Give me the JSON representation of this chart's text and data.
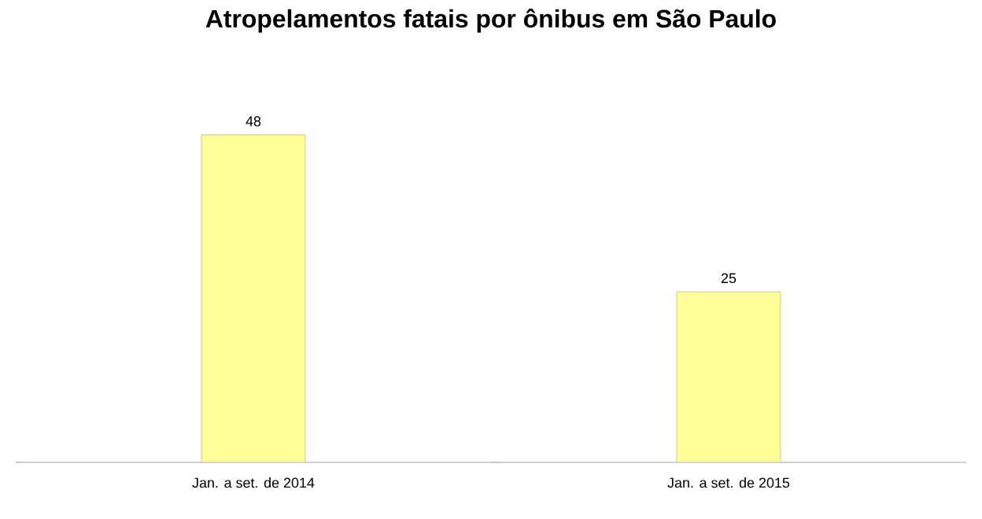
{
  "chart_data": {
    "type": "bar",
    "title": "Atropelamentos fatais por ônibus em São Paulo",
    "categories": [
      "Jan. a set. de 2014",
      "Jan. a set. de 2015"
    ],
    "values": [
      48,
      25
    ],
    "color": "#ffff99",
    "data_labels": true
  }
}
